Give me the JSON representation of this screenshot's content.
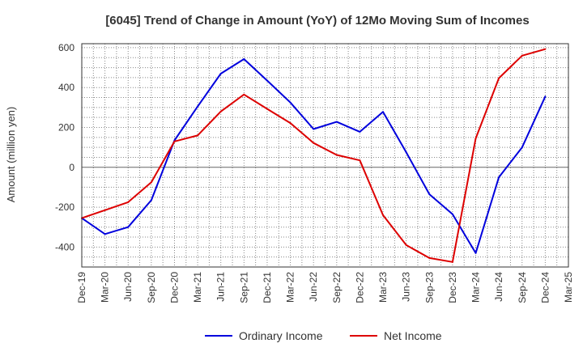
{
  "chart_data": {
    "type": "line",
    "title": "[6045]  Trend of Change in Amount (YoY) of 12Mo Moving Sum of Incomes",
    "xlabel": "",
    "ylabel": "Amount (million yen)",
    "ylim": [
      -500,
      620
    ],
    "yticks": [
      -400,
      -200,
      0,
      200,
      400,
      600
    ],
    "categories": [
      "Dec-19",
      "Mar-20",
      "Jun-20",
      "Sep-20",
      "Dec-20",
      "Mar-21",
      "Jun-21",
      "Sep-21",
      "Dec-21",
      "Mar-22",
      "Jun-22",
      "Sep-22",
      "Dec-22",
      "Mar-23",
      "Jun-23",
      "Sep-23",
      "Dec-23",
      "Mar-24",
      "Jun-24",
      "Sep-24",
      "Dec-24",
      "Mar-25"
    ],
    "series": [
      {
        "name": "Ordinary Income",
        "color": "#0000dd",
        "values": [
          -255,
          -335,
          -300,
          -165,
          135,
          305,
          470,
          543,
          435,
          325,
          192,
          228,
          178,
          278,
          75,
          -135,
          -235,
          -430,
          -50,
          100,
          355,
          null
        ]
      },
      {
        "name": "Net Income",
        "color": "#dd0000",
        "values": [
          -255,
          -215,
          -175,
          -75,
          130,
          160,
          280,
          365,
          293,
          222,
          122,
          62,
          35,
          -240,
          -390,
          -455,
          -475,
          145,
          447,
          560,
          593,
          null
        ]
      }
    ],
    "grid": true,
    "legend": "bottom-center"
  }
}
